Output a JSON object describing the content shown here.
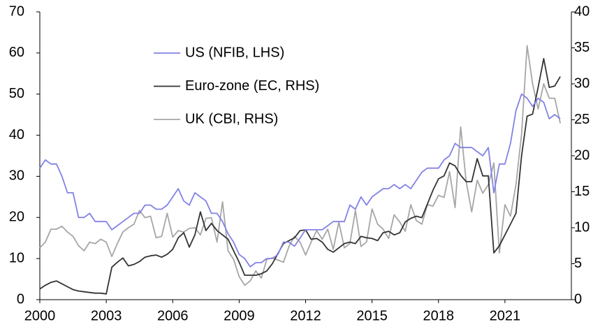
{
  "chart_data": {
    "type": "line",
    "x": [
      2000,
      2000.25,
      2000.5,
      2000.75,
      2001,
      2001.25,
      2001.5,
      2001.75,
      2002,
      2002.25,
      2002.5,
      2002.75,
      2003,
      2003.25,
      2003.5,
      2003.75,
      2004,
      2004.25,
      2004.5,
      2004.75,
      2005,
      2005.25,
      2005.5,
      2005.75,
      2006,
      2006.25,
      2006.5,
      2006.75,
      2007,
      2007.25,
      2007.5,
      2007.75,
      2008,
      2008.25,
      2008.5,
      2008.75,
      2009,
      2009.25,
      2009.5,
      2009.75,
      2010,
      2010.25,
      2010.5,
      2010.75,
      2011,
      2011.25,
      2011.5,
      2011.75,
      2012,
      2012.25,
      2012.5,
      2012.75,
      2013,
      2013.25,
      2013.5,
      2013.75,
      2014,
      2014.25,
      2014.5,
      2014.75,
      2015,
      2015.25,
      2015.5,
      2015.75,
      2016,
      2016.25,
      2016.5,
      2016.75,
      2017,
      2017.25,
      2017.5,
      2017.75,
      2018,
      2018.25,
      2018.5,
      2018.75,
      2019,
      2019.25,
      2019.5,
      2019.75,
      2020,
      2020.25,
      2020.5,
      2020.75,
      2021,
      2021.25,
      2021.5,
      2021.75,
      2022,
      2022.25,
      2022.5,
      2022.75,
      2023,
      2023.25,
      2023.5
    ],
    "series": [
      {
        "name": "US (NFIB, LHS)",
        "color": "#8282e6",
        "values": [
          32,
          34,
          33,
          33,
          30,
          26,
          26,
          20,
          20,
          21,
          19,
          19,
          19,
          17,
          18,
          19,
          20,
          21,
          21,
          23,
          23,
          22,
          22,
          23,
          25,
          27,
          24,
          23,
          26,
          25,
          24,
          21,
          21,
          19,
          16,
          14,
          11,
          10,
          8,
          9,
          9,
          10,
          10,
          11,
          14,
          14,
          13,
          15,
          17,
          17,
          17,
          17,
          18,
          19,
          19,
          19,
          23,
          22,
          25,
          23,
          25,
          26,
          27,
          27,
          28,
          27,
          28,
          27,
          29,
          31,
          32,
          32,
          32,
          34,
          35,
          38,
          37,
          37,
          37,
          36,
          35,
          37,
          26,
          33,
          33,
          38,
          46,
          50,
          49,
          47,
          49,
          48,
          44,
          45,
          44
        ]
      },
      {
        "name": "Euro-zone (EC, RHS)",
        "color": "#333333",
        "axis": "y2",
        "values": [
          1.5,
          2,
          2.4,
          2.6,
          2.2,
          1.8,
          1.4,
          1.2,
          1.1,
          1,
          0.9,
          0.9,
          0.8,
          4.5,
          5.2,
          5.8,
          4.7,
          4.9,
          5.3,
          5.9,
          6.1,
          6.2,
          5.9,
          6.3,
          7,
          8.6,
          9.3,
          7.3,
          9,
          12.2,
          9.6,
          10.6,
          9.6,
          9,
          8.4,
          6.8,
          5.2,
          3.4,
          3.4,
          3.4,
          3.6,
          4,
          5,
          6.4,
          7.8,
          8.2,
          8.6,
          9.6,
          9.7,
          8.4,
          8.5,
          8,
          7,
          6.6,
          7.2,
          7.8,
          8,
          7.8,
          8.8,
          8.6,
          8.5,
          8.2,
          9.3,
          9.5,
          9,
          9.3,
          10.8,
          11.3,
          11.6,
          11.4,
          13.3,
          15.2,
          16.8,
          17.2,
          19,
          18.6,
          17.3,
          16.4,
          16.4,
          19.6,
          17.2,
          17.2,
          6.5,
          7.5,
          9,
          10.5,
          12,
          20,
          25.5,
          25.8,
          29.5,
          33.5,
          29.5,
          29.7,
          31
        ]
      },
      {
        "name": "UK (CBI, RHS)",
        "color": "#a6a6a6",
        "axis": "y2",
        "values": [
          7.2,
          8,
          9.8,
          9.8,
          10.2,
          9.4,
          8.8,
          7.5,
          6.8,
          8,
          7.8,
          8.4,
          8,
          6,
          7.8,
          9.4,
          10,
          10.5,
          12.4,
          11.4,
          11.6,
          8.6,
          8.8,
          12,
          8.7,
          9.6,
          9.4,
          9.9,
          10,
          9,
          11.3,
          11.4,
          8,
          13.6,
          6.8,
          5.6,
          3.2,
          2,
          2.6,
          4,
          3,
          5.6,
          5.8,
          5.5,
          5.2,
          7.4,
          8.8,
          8,
          6.2,
          8,
          9.6,
          8.4,
          9.8,
          7,
          10.8,
          7.2,
          7.8,
          12.4,
          7.4,
          8,
          12.6,
          10.5,
          9.8,
          8.5,
          11.8,
          10.8,
          9.5,
          13.2,
          11,
          10.5,
          13.2,
          13,
          14.5,
          14.2,
          17.8,
          12.8,
          24,
          16.4,
          12.2,
          16.6,
          14.8,
          16,
          19,
          6.5,
          13.2,
          11.6,
          16,
          23,
          35.3,
          30,
          26.5,
          30,
          28,
          28,
          24.5
        ]
      }
    ],
    "xlim": [
      2000,
      2024
    ],
    "xticks": [
      2000,
      2003,
      2006,
      2009,
      2012,
      2015,
      2018,
      2021
    ],
    "ylim": [
      0,
      70
    ],
    "yticks": [
      0,
      10,
      20,
      30,
      40,
      50,
      60,
      70
    ],
    "y2lim": [
      0,
      40
    ],
    "y2ticks": [
      0,
      5,
      10,
      15,
      20,
      25,
      30,
      35,
      40
    ]
  }
}
